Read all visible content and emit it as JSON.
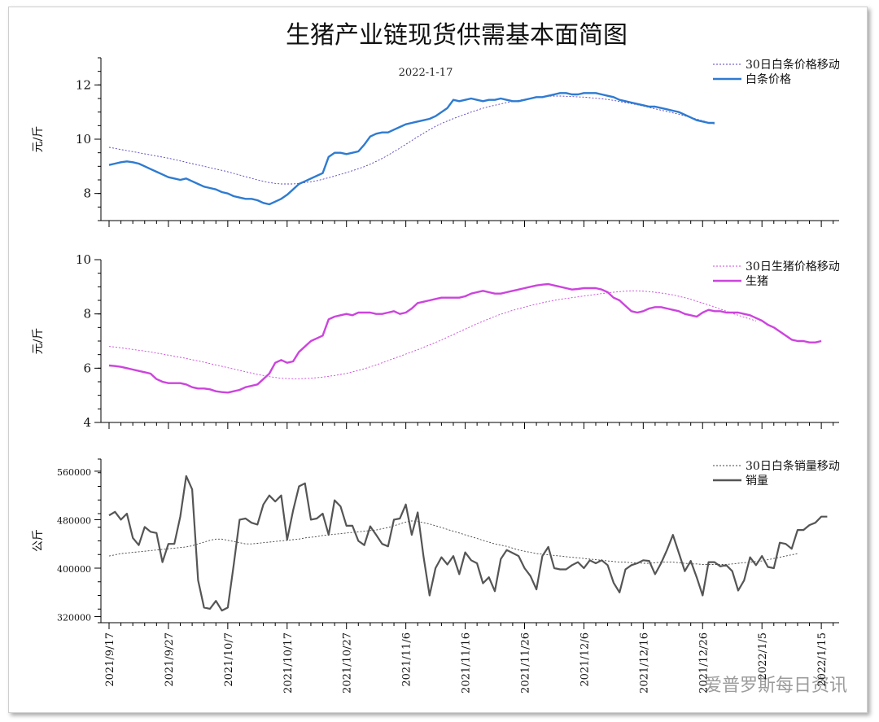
{
  "title": "生猪产业链现货供需基本面简图",
  "date": "2022-1-17",
  "watermark": "爱普罗斯每日资讯",
  "x_labels": [
    "2021/9/17",
    "2021/9/27",
    "2021/10/7",
    "2021/10/17",
    "2021/10/27",
    "2021/11/6",
    "2021/11/16",
    "2021/11/26",
    "2021/12/6",
    "2021/12/16",
    "2021/12/26",
    "2022/1/5",
    "2022/1/15"
  ],
  "colors": {
    "white_strip": "#2e7bd1",
    "hog": "#cc44dd",
    "sales": "#555555",
    "ma_white": "#5a3fc0",
    "ma_hog": "#cc44dd",
    "ma_sales": "#444444"
  },
  "chart_data": [
    {
      "type": "line",
      "ylabel": "元/斤",
      "ylim": [
        7,
        13
      ],
      "yticks": [
        8,
        10,
        12
      ],
      "grid": false,
      "legend": "top-right",
      "x_start": "2021/9/17",
      "series": [
        {
          "name": "30日白条价格移动",
          "style": "dotted",
          "values": [
            9.7,
            9.66,
            9.62,
            9.58,
            9.54,
            9.5,
            9.46,
            9.42,
            9.38,
            9.34,
            9.3,
            9.25,
            9.2,
            9.15,
            9.1,
            9.05,
            9.0,
            8.95,
            8.9,
            8.85,
            8.8,
            8.74,
            8.68,
            8.62,
            8.56,
            8.5,
            8.45,
            8.4,
            8.37,
            8.35,
            8.35,
            8.35,
            8.37,
            8.4,
            8.43,
            8.47,
            8.52,
            8.58,
            8.64,
            8.7,
            8.77,
            8.84,
            8.91,
            8.99,
            9.08,
            9.18,
            9.29,
            9.41,
            9.54,
            9.67,
            9.81,
            9.95,
            10.09,
            10.22,
            10.35,
            10.47,
            10.58,
            10.67,
            10.76,
            10.84,
            10.92,
            11.0,
            11.07,
            11.14,
            11.2,
            11.25,
            11.3,
            11.35,
            11.39,
            11.43,
            11.47,
            11.51,
            11.54,
            11.56,
            11.58,
            11.59,
            11.59,
            11.58,
            11.57,
            11.56,
            11.55,
            11.53,
            11.51,
            11.49,
            11.46,
            11.43,
            11.39,
            11.35,
            11.31,
            11.27,
            11.22,
            11.17,
            11.12,
            11.07,
            11.02,
            10.97,
            10.92,
            10.86,
            10.8,
            10.74,
            10.68,
            10.62,
            10.56
          ]
        },
        {
          "name": "白条价格",
          "style": "solid",
          "values": [
            9.05,
            9.1,
            9.15,
            9.18,
            9.15,
            9.1,
            9.0,
            8.9,
            8.8,
            8.7,
            8.6,
            8.55,
            8.5,
            8.55,
            8.45,
            8.35,
            8.25,
            8.2,
            8.15,
            8.05,
            8.0,
            7.9,
            7.85,
            7.8,
            7.8,
            7.75,
            7.65,
            7.6,
            7.7,
            7.8,
            7.95,
            8.15,
            8.35,
            8.45,
            8.55,
            8.65,
            8.75,
            9.35,
            9.5,
            9.5,
            9.45,
            9.5,
            9.55,
            9.8,
            10.1,
            10.2,
            10.25,
            10.25,
            10.35,
            10.45,
            10.55,
            10.6,
            10.65,
            10.7,
            10.75,
            10.85,
            11.0,
            11.15,
            11.45,
            11.4,
            11.45,
            11.5,
            11.45,
            11.4,
            11.45,
            11.45,
            11.5,
            11.45,
            11.4,
            11.4,
            11.45,
            11.5,
            11.55,
            11.55,
            11.6,
            11.65,
            11.7,
            11.7,
            11.65,
            11.65,
            11.7,
            11.7,
            11.7,
            11.65,
            11.6,
            11.55,
            11.45,
            11.4,
            11.35,
            11.3,
            11.25,
            11.2,
            11.2,
            11.15,
            11.1,
            11.05,
            11.0,
            10.9,
            10.8,
            10.7,
            10.65,
            10.6,
            10.6
          ]
        }
      ]
    },
    {
      "type": "line",
      "ylabel": "元/斤",
      "ylim": [
        4,
        10
      ],
      "yticks": [
        4,
        6,
        8,
        10
      ],
      "grid": false,
      "legend": "top-right",
      "x_start": "2021/9/17",
      "series": [
        {
          "name": "30日生猪价格移动",
          "style": "dotted",
          "values": [
            6.8,
            6.78,
            6.75,
            6.72,
            6.69,
            6.66,
            6.63,
            6.6,
            6.56,
            6.52,
            6.48,
            6.44,
            6.4,
            6.36,
            6.31,
            6.27,
            6.22,
            6.17,
            6.12,
            6.07,
            6.02,
            5.97,
            5.92,
            5.87,
            5.82,
            5.77,
            5.73,
            5.69,
            5.66,
            5.63,
            5.62,
            5.61,
            5.61,
            5.62,
            5.63,
            5.65,
            5.67,
            5.7,
            5.73,
            5.77,
            5.81,
            5.86,
            5.92,
            5.98,
            6.05,
            6.12,
            6.2,
            6.28,
            6.36,
            6.44,
            6.52,
            6.6,
            6.68,
            6.77,
            6.86,
            6.95,
            7.04,
            7.14,
            7.24,
            7.34,
            7.44,
            7.54,
            7.64,
            7.73,
            7.82,
            7.91,
            7.99,
            8.06,
            8.13,
            8.19,
            8.25,
            8.31,
            8.36,
            8.41,
            8.46,
            8.5,
            8.54,
            8.57,
            8.6,
            8.63,
            8.66,
            8.69,
            8.72,
            8.75,
            8.78,
            8.8,
            8.82,
            8.84,
            8.85,
            8.85,
            8.84,
            8.82,
            8.8,
            8.77,
            8.74,
            8.7,
            8.65,
            8.6,
            8.54,
            8.47,
            8.4,
            8.33,
            8.26,
            8.18,
            8.1,
            8.02,
            7.95,
            7.88,
            7.81,
            7.74
          ]
        },
        {
          "name": "生猪",
          "style": "solid",
          "values": [
            6.1,
            6.08,
            6.05,
            6.0,
            5.95,
            5.9,
            5.85,
            5.8,
            5.6,
            5.5,
            5.45,
            5.45,
            5.45,
            5.4,
            5.3,
            5.25,
            5.25,
            5.22,
            5.15,
            5.12,
            5.1,
            5.15,
            5.2,
            5.3,
            5.35,
            5.4,
            5.6,
            5.8,
            6.2,
            6.3,
            6.2,
            6.25,
            6.6,
            6.8,
            7.0,
            7.1,
            7.2,
            7.8,
            7.9,
            7.95,
            8.0,
            7.95,
            8.05,
            8.05,
            8.05,
            8.0,
            8.0,
            8.05,
            8.1,
            8.0,
            8.05,
            8.2,
            8.4,
            8.45,
            8.5,
            8.55,
            8.6,
            8.6,
            8.6,
            8.6,
            8.65,
            8.75,
            8.8,
            8.85,
            8.8,
            8.75,
            8.75,
            8.8,
            8.85,
            8.9,
            8.95,
            9.0,
            9.05,
            9.08,
            9.1,
            9.05,
            9.0,
            8.95,
            8.9,
            8.92,
            8.95,
            8.95,
            8.95,
            8.9,
            8.8,
            8.6,
            8.5,
            8.3,
            8.1,
            8.05,
            8.1,
            8.2,
            8.25,
            8.25,
            8.2,
            8.15,
            8.1,
            8.0,
            7.95,
            7.9,
            8.05,
            8.15,
            8.1,
            8.1,
            8.05,
            8.05,
            8.05,
            8.0,
            7.95,
            7.85,
            7.75,
            7.6,
            7.5,
            7.35,
            7.2,
            7.05,
            7.0,
            7.0,
            6.95,
            6.95,
            7.0
          ]
        }
      ]
    },
    {
      "type": "line",
      "ylabel": "公斤",
      "ylim": [
        310000,
        580000
      ],
      "yticks": [
        320000,
        400000,
        480000,
        560000
      ],
      "grid": false,
      "legend": "top-right",
      "x_start": "2021/9/17",
      "series": [
        {
          "name": "30日白条销量移动",
          "style": "dotted",
          "values": [
            420000,
            422000,
            424000,
            425000,
            426000,
            427000,
            428000,
            429000,
            430000,
            431000,
            432000,
            433000,
            434000,
            435000,
            437000,
            440000,
            443000,
            446000,
            448000,
            448000,
            446000,
            444000,
            442000,
            440000,
            440000,
            441000,
            442000,
            443000,
            444000,
            445000,
            446000,
            447000,
            448000,
            450000,
            451000,
            452000,
            454000,
            455000,
            456000,
            457000,
            458000,
            459000,
            460000,
            461000,
            462000,
            463000,
            465000,
            467000,
            470000,
            473000,
            476000,
            478000,
            477000,
            475000,
            473000,
            470000,
            467000,
            464000,
            461000,
            458000,
            455000,
            452000,
            449000,
            446000,
            443000,
            440000,
            438000,
            436000,
            433000,
            430000,
            428000,
            426000,
            424000,
            423000,
            422000,
            421000,
            420000,
            419000,
            418000,
            417000,
            416000,
            415000,
            414000,
            413000,
            412000,
            411000,
            410000,
            410000,
            409000,
            409000,
            408000,
            408000,
            409000,
            410000,
            410000,
            410000,
            409000,
            408000,
            407000,
            407000,
            406000,
            406000,
            406000,
            406000,
            406000,
            407000,
            408000,
            409000,
            410000,
            411000,
            412000,
            414000,
            416000,
            418000,
            420000,
            422000,
            424000
          ]
        },
        {
          "name": "销量",
          "style": "solid",
          "values": [
            487000,
            493000,
            480000,
            490000,
            450000,
            438000,
            468000,
            460000,
            458000,
            410000,
            440000,
            440000,
            485000,
            552000,
            530000,
            380000,
            335000,
            333000,
            346000,
            330000,
            335000,
            405000,
            480000,
            482000,
            475000,
            472000,
            505000,
            520000,
            510000,
            520000,
            447000,
            495000,
            535000,
            540000,
            480000,
            482000,
            490000,
            455000,
            512000,
            502000,
            470000,
            470000,
            445000,
            438000,
            469000,
            455000,
            440000,
            436000,
            480000,
            482000,
            505000,
            455000,
            492000,
            418000,
            355000,
            400000,
            418000,
            406000,
            420000,
            390000,
            426000,
            413000,
            408000,
            375000,
            385000,
            362000,
            415000,
            430000,
            425000,
            420000,
            400000,
            387000,
            365000,
            420000,
            435000,
            400000,
            398000,
            398000,
            405000,
            410000,
            400000,
            413000,
            408000,
            413000,
            405000,
            376000,
            360000,
            398000,
            405000,
            408000,
            413000,
            412000,
            390000,
            408000,
            430000,
            455000,
            425000,
            395000,
            412000,
            385000,
            355000,
            410000,
            410000,
            403000,
            405000,
            395000,
            363000,
            380000,
            418000,
            405000,
            420000,
            402000,
            400000,
            442000,
            440000,
            432000,
            463000,
            463000,
            471000,
            475000,
            485000,
            485000
          ]
        }
      ]
    }
  ]
}
